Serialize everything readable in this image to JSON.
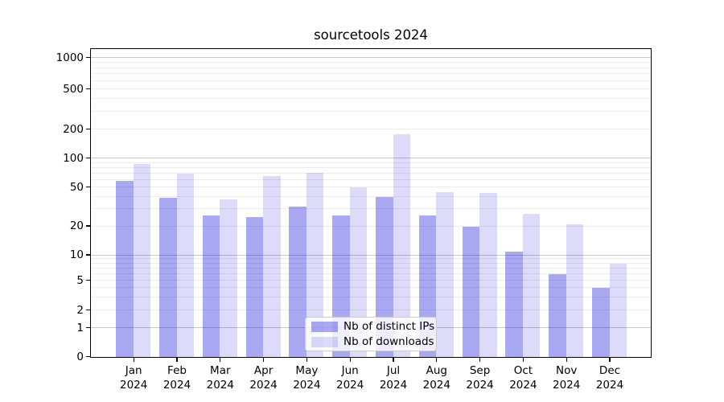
{
  "title": "sourcetools 2024",
  "colors": {
    "ips": "rgba(10,10,220,0.35)",
    "downloads": "rgba(10,10,220,0.14)",
    "grid_major": "#c8c8c8",
    "grid_minor": "#ececec",
    "axis": "#000000",
    "background": "#ffffff"
  },
  "legend": {
    "position": "lower center",
    "items": [
      {
        "id": "ips",
        "label": "Nb of distinct IPs"
      },
      {
        "id": "downloads",
        "label": "Nb of downloads"
      }
    ]
  },
  "chart_data": {
    "type": "bar",
    "title": "sourcetools 2024",
    "categories": [
      "Jan 2024",
      "Feb 2024",
      "Mar 2024",
      "Apr 2024",
      "May 2024",
      "Jun 2024",
      "Jul 2024",
      "Aug 2024",
      "Sep 2024",
      "Oct 2024",
      "Nov 2024",
      "Dec 2024"
    ],
    "months": [
      "Jan",
      "Feb",
      "Mar",
      "Apr",
      "May",
      "Jun",
      "Jul",
      "Aug",
      "Sep",
      "Oct",
      "Nov",
      "Dec"
    ],
    "year": "2024",
    "series": [
      {
        "name": "Nb of distinct IPs",
        "id": "ips",
        "values": [
          58,
          39,
          26,
          25,
          32,
          26,
          40,
          26,
          20,
          11,
          6,
          4
        ]
      },
      {
        "name": "Nb of downloads",
        "id": "downloads",
        "values": [
          87,
          70,
          38,
          66,
          71,
          50,
          180,
          45,
          44,
          27,
          21,
          8
        ]
      }
    ],
    "yscale": "symlog",
    "y_ticks": [
      0,
      1,
      2,
      5,
      10,
      20,
      50,
      100,
      200,
      500,
      1000
    ],
    "ylim": [
      0,
      1200
    ],
    "grid": true,
    "legend_position": "lower center"
  }
}
